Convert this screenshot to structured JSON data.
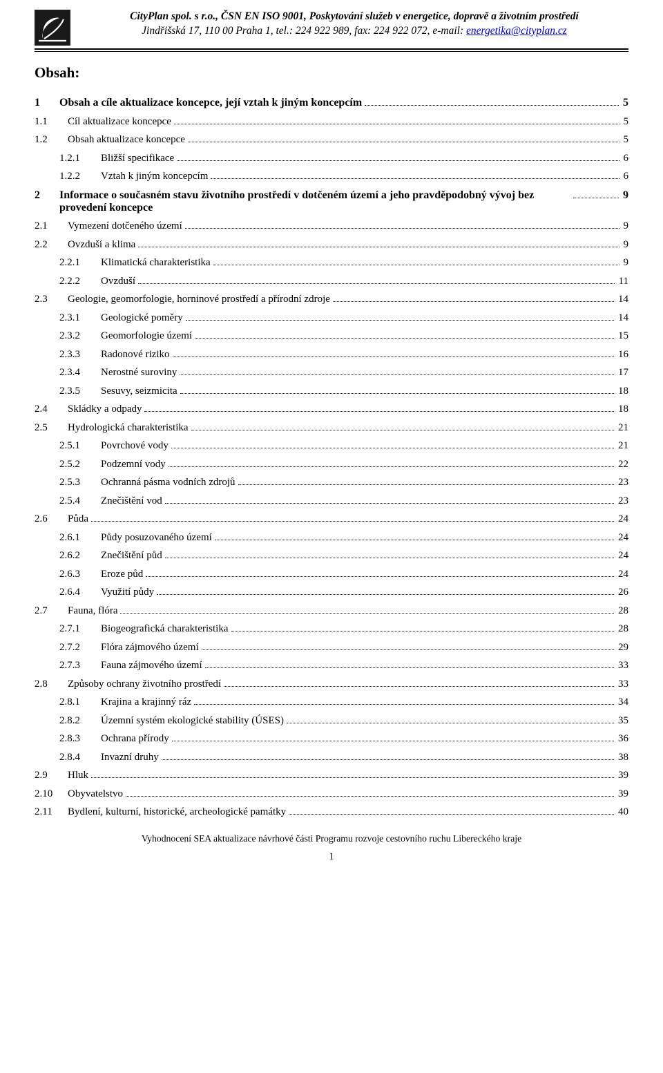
{
  "header": {
    "company_line": "CityPlan spol. s r.o., ČSN EN ISO 9001, Poskytování služeb v energetice, dopravě a životním prostředí",
    "address_prefix": "Jindřišská 17, 110 00  Praha 1, tel.: 224 922 989, fax: 224 922 072, e-mail: ",
    "email": "energetika@cityplan.cz"
  },
  "toc_title": "Obsah:",
  "toc": [
    {
      "lvl": 1,
      "num": "1",
      "label": "Obsah a cíle aktualizace koncepce, její vztah k jiným koncepcím",
      "page": "5"
    },
    {
      "lvl": 2,
      "num": "1.1",
      "label": "Cíl aktualizace koncepce",
      "page": "5"
    },
    {
      "lvl": 2,
      "num": "1.2",
      "label": "Obsah aktualizace koncepce",
      "page": "5"
    },
    {
      "lvl": 3,
      "num": "1.2.1",
      "label": "Bližší specifikace",
      "page": "6"
    },
    {
      "lvl": 3,
      "num": "1.2.2",
      "label": "Vztah k jiným koncepcím",
      "page": "6"
    },
    {
      "lvl": 1,
      "num": "2",
      "label": "Informace o současném stavu životního prostředí v dotčeném území a jeho pravděpodobný vývoj bez provedení koncepce",
      "page": "9"
    },
    {
      "lvl": 2,
      "num": "2.1",
      "label": "Vymezení dotčeného území",
      "page": "9"
    },
    {
      "lvl": 2,
      "num": "2.2",
      "label": "Ovzduší a klima",
      "page": "9"
    },
    {
      "lvl": 3,
      "num": "2.2.1",
      "label": "Klimatická charakteristika",
      "page": "9"
    },
    {
      "lvl": 3,
      "num": "2.2.2",
      "label": "Ovzduší",
      "page": "11"
    },
    {
      "lvl": 2,
      "num": "2.3",
      "label": "Geologie, geomorfologie, horninové prostředí a přírodní zdroje",
      "page": "14"
    },
    {
      "lvl": 3,
      "num": "2.3.1",
      "label": "Geologické poměry",
      "page": "14"
    },
    {
      "lvl": 3,
      "num": "2.3.2",
      "label": "Geomorfologie území",
      "page": "15"
    },
    {
      "lvl": 3,
      "num": "2.3.3",
      "label": "Radonové riziko",
      "page": "16"
    },
    {
      "lvl": 3,
      "num": "2.3.4",
      "label": "Nerostné suroviny",
      "page": "17"
    },
    {
      "lvl": 3,
      "num": "2.3.5",
      "label": "Sesuvy, seizmicita",
      "page": "18"
    },
    {
      "lvl": 2,
      "num": "2.4",
      "label": "Skládky a odpady",
      "page": "18"
    },
    {
      "lvl": 2,
      "num": "2.5",
      "label": "Hydrologická charakteristika",
      "page": "21"
    },
    {
      "lvl": 3,
      "num": "2.5.1",
      "label": "Povrchové vody",
      "page": "21"
    },
    {
      "lvl": 3,
      "num": "2.5.2",
      "label": "Podzemní vody",
      "page": "22"
    },
    {
      "lvl": 3,
      "num": "2.5.3",
      "label": "Ochranná pásma vodních zdrojů",
      "page": "23"
    },
    {
      "lvl": 3,
      "num": "2.5.4",
      "label": "Znečištění vod",
      "page": "23"
    },
    {
      "lvl": 2,
      "num": "2.6",
      "label": "Půda",
      "page": "24"
    },
    {
      "lvl": 3,
      "num": "2.6.1",
      "label": "Půdy posuzovaného území",
      "page": "24"
    },
    {
      "lvl": 3,
      "num": "2.6.2",
      "label": "Znečištění půd",
      "page": "24"
    },
    {
      "lvl": 3,
      "num": "2.6.3",
      "label": "Eroze půd",
      "page": "24"
    },
    {
      "lvl": 3,
      "num": "2.6.4",
      "label": "Využití půdy",
      "page": "26"
    },
    {
      "lvl": 2,
      "num": "2.7",
      "label": "Fauna, flóra",
      "page": "28"
    },
    {
      "lvl": 3,
      "num": "2.7.1",
      "label": "Biogeografická charakteristika",
      "page": "28"
    },
    {
      "lvl": 3,
      "num": "2.7.2",
      "label": "Flóra zájmového území",
      "page": "29"
    },
    {
      "lvl": 3,
      "num": "2.7.3",
      "label": "Fauna zájmového území",
      "page": "33"
    },
    {
      "lvl": 2,
      "num": "2.8",
      "label": "Způsoby ochrany životního prostředí",
      "page": "33"
    },
    {
      "lvl": 3,
      "num": "2.8.1",
      "label": "Krajina a krajinný ráz",
      "page": "34"
    },
    {
      "lvl": 3,
      "num": "2.8.2",
      "label": "Územní systém ekologické stability (ÚSES)",
      "page": "35"
    },
    {
      "lvl": 3,
      "num": "2.8.3",
      "label": "Ochrana přírody",
      "page": "36"
    },
    {
      "lvl": 3,
      "num": "2.8.4",
      "label": "Invazní druhy",
      "page": "38"
    },
    {
      "lvl": 2,
      "num": "2.9",
      "label": "Hluk",
      "page": "39"
    },
    {
      "lvl": 2,
      "num": "2.10",
      "label": "Obyvatelstvo",
      "page": "39"
    },
    {
      "lvl": 2,
      "num": "2.11",
      "label": "Bydlení, kulturní, historické, archeologické památky",
      "page": "40"
    }
  ],
  "footer": {
    "text": "Vyhodnocení SEA aktualizace návrhové části Programu rozvoje cestovního ruchu Libereckého kraje",
    "page_number": "1"
  },
  "logo": {
    "colors": {
      "bg": "#1a1a1a",
      "fg": "#ffffff"
    }
  }
}
